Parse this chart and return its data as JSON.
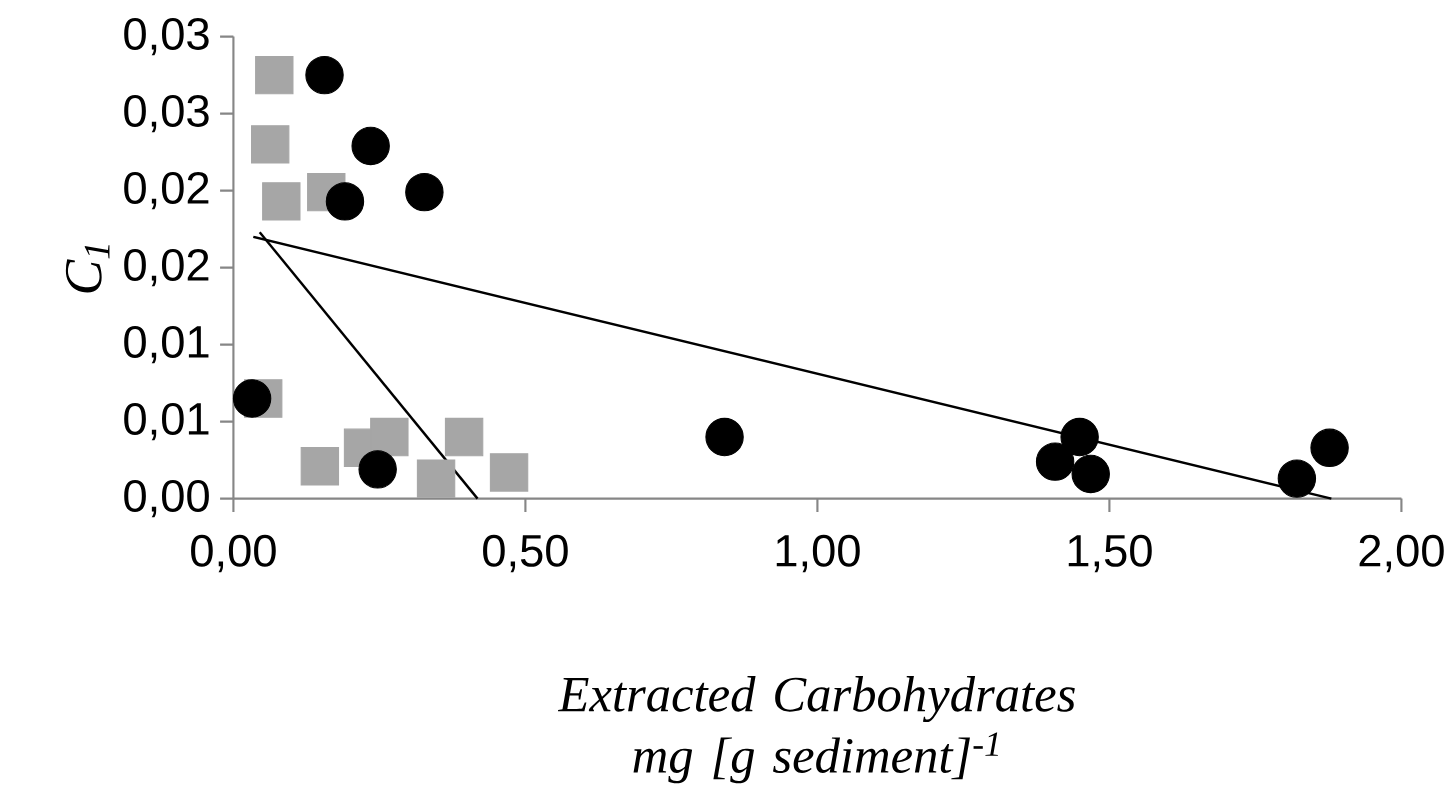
{
  "chart_data": {
    "type": "scatter",
    "xlabel": "Extracted Carbohydrates mg [g sediment]$^{-1}$",
    "ylabel": "C$_{1}$",
    "xlim": [
      0,
      2
    ],
    "ylim": [
      0,
      0.03
    ],
    "xticks": [
      {
        "value": 0,
        "label": "0,00"
      },
      {
        "value": 0.5,
        "label": "0,50"
      },
      {
        "value": 1,
        "label": "1,00"
      },
      {
        "value": 1.5,
        "label": "1,50"
      },
      {
        "value": 2,
        "label": "2,00"
      }
    ],
    "yticks": [
      {
        "value": 0,
        "label": "0,00"
      },
      {
        "value": 0.005,
        "label": "0,01"
      },
      {
        "value": 0.01,
        "label": "0,01"
      },
      {
        "value": 0.015,
        "label": "0,02"
      },
      {
        "value": 0.02,
        "label": "0,02"
      },
      {
        "value": 0.025,
        "label": "0,03"
      },
      {
        "value": 0.03,
        "label": "0,03"
      }
    ],
    "grid": false,
    "series": [
      {
        "marker": "square",
        "color": "#a6a6a6",
        "x": [
          0.07,
          0.063,
          0.082,
          0.159,
          0.051,
          0.148,
          0.222,
          0.267,
          0.347,
          0.395,
          0.472
        ],
        "values": [
          0.0275,
          0.023,
          0.0193,
          0.0199,
          0.0065,
          0.0021,
          0.0033,
          0.004,
          0.0013,
          0.004,
          0.0017
        ]
      },
      {
        "marker": "circle",
        "color": "#000000",
        "x": [
          0.156,
          0.235,
          0.191,
          0.327,
          0.032,
          0.247,
          0.841,
          1.449,
          1.407,
          1.468,
          1.821,
          1.877
        ],
        "values": [
          0.0275,
          0.0229,
          0.0193,
          0.0199,
          0.0065,
          0.0019,
          0.004,
          0.004,
          0.0024,
          0.0016,
          0.0013,
          0.0033
        ]
      },
      {
        "type": "line",
        "marker": "none",
        "line_style": "solid",
        "color": "#000000",
        "x": [
          0.034,
          1.88
        ],
        "values": [
          0.017,
          0
        ]
      },
      {
        "type": "line",
        "marker": "none",
        "line_style": "solid",
        "color": "#000000",
        "x": [
          0.045,
          0.418
        ],
        "values": [
          0.0173,
          0
        ]
      }
    ]
  }
}
